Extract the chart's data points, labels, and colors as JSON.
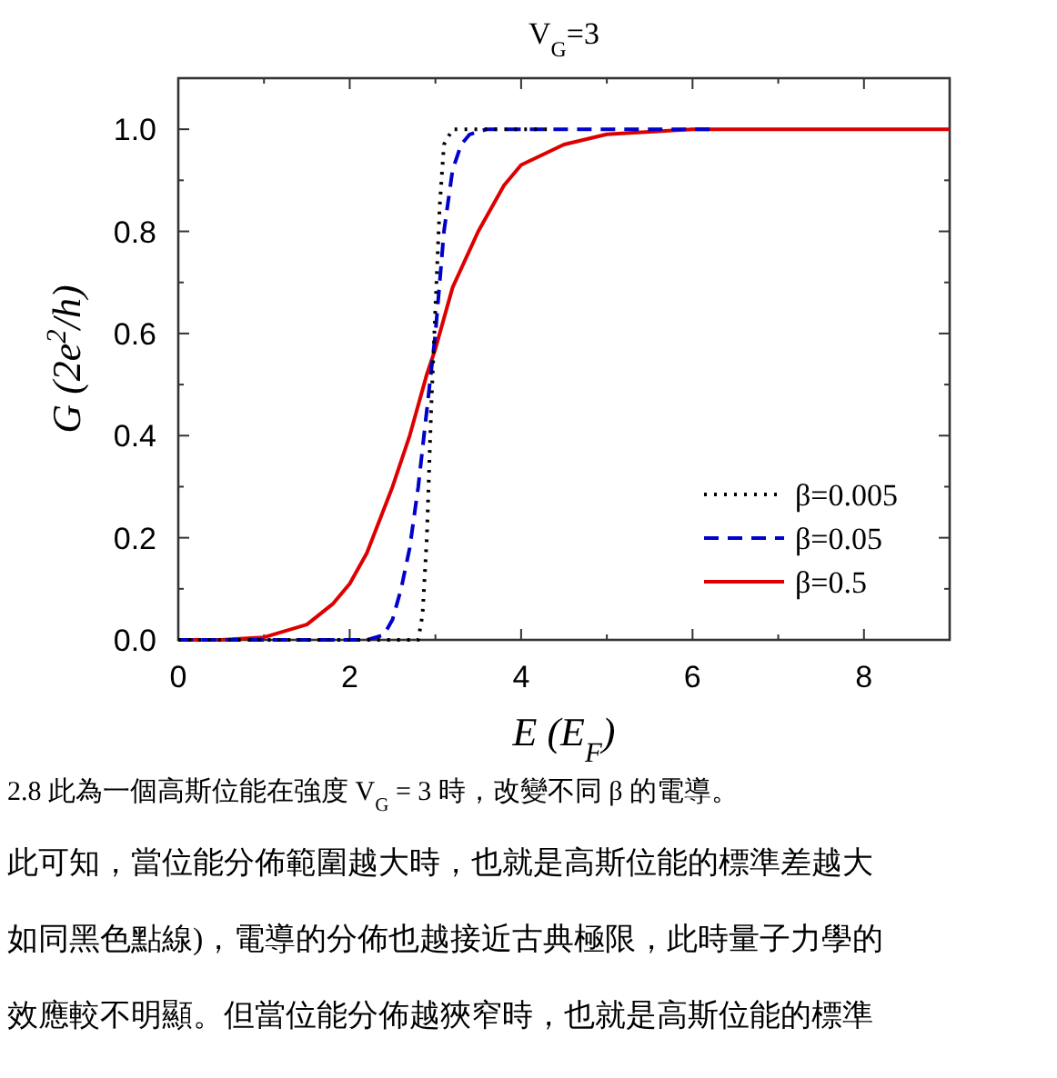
{
  "chart_data": {
    "type": "line",
    "title": "V$_{G}$=3",
    "xlabel": "E (E$_{F}$)",
    "ylabel": "G (2e$^{2}$/h)",
    "xlim": [
      0,
      9
    ],
    "ylim": [
      0,
      1.1
    ],
    "xticks": [
      0,
      {
        "value": 1,
        "label": null
      },
      2,
      {
        "value": 3,
        "label": null
      },
      4,
      {
        "value": 5,
        "label": null
      },
      6,
      {
        "value": 7,
        "label": null
      },
      8,
      {
        "value": 9,
        "label": null
      }
    ],
    "yticks": [
      {
        "value": 0,
        "label": "0.0"
      },
      {
        "value": 0.1,
        "label": null
      },
      {
        "value": 0.2,
        "label": "0.2"
      },
      {
        "value": 0.3,
        "label": null
      },
      {
        "value": 0.4,
        "label": "0.4"
      },
      {
        "value": 0.5,
        "label": null
      },
      {
        "value": 0.6,
        "label": "0.6"
      },
      {
        "value": 0.7,
        "label": null
      },
      {
        "value": 0.8,
        "label": "0.8"
      },
      {
        "value": 0.9,
        "label": null
      },
      {
        "value": 1.0,
        "label": "1.0"
      },
      {
        "value": 1.1,
        "label": null
      }
    ],
    "grid": false,
    "legend": "bottom right",
    "series": [
      {
        "name": "β=0.005",
        "color": "#000000",
        "line_style": "dotted",
        "x": [
          0,
          2.8,
          2.85,
          2.9,
          2.95,
          3.0,
          3.05,
          3.1,
          3.2,
          4.3
        ],
        "values": [
          0,
          0,
          0.05,
          0.2,
          0.45,
          0.65,
          0.85,
          0.97,
          1.0,
          1.0
        ]
      },
      {
        "name": "β=0.05",
        "color": "#0000cc",
        "line_style": "dashed",
        "x": [
          0,
          2.2,
          2.4,
          2.5,
          2.6,
          2.7,
          2.8,
          2.9,
          3.0,
          3.1,
          3.2,
          3.3,
          3.4,
          3.6,
          6.2
        ],
        "values": [
          0,
          0,
          0.01,
          0.04,
          0.1,
          0.18,
          0.3,
          0.45,
          0.6,
          0.8,
          0.92,
          0.97,
          0.99,
          1.0,
          1.0
        ]
      },
      {
        "name": "β=0.5",
        "color": "#dd0000",
        "line_style": "solid",
        "x": [
          0,
          0.5,
          1.0,
          1.5,
          1.8,
          2.0,
          2.2,
          2.5,
          2.7,
          2.9,
          3.0,
          3.2,
          3.5,
          3.8,
          4.0,
          4.5,
          5.0,
          6.0,
          9.0
        ],
        "values": [
          0,
          0,
          0.005,
          0.03,
          0.07,
          0.11,
          0.17,
          0.3,
          0.4,
          0.52,
          0.57,
          0.69,
          0.8,
          0.89,
          0.93,
          0.97,
          0.99,
          1.0,
          1.0
        ]
      }
    ],
    "annotations": [
      "2.8 此為一個高斯位能在強度 V$_{G}$ = 3 時，改變不同 β 的電導。",
      "此可知，當位能分佈範圍越大時，也就是高斯位能的標準差越大",
      "如同黑色點線)，電導的分佈也越接近古典極限，此時量子力學的",
      "效應較不明顯。但當位能分佈越狹窄時，也就是高斯位能的標準"
    ]
  }
}
